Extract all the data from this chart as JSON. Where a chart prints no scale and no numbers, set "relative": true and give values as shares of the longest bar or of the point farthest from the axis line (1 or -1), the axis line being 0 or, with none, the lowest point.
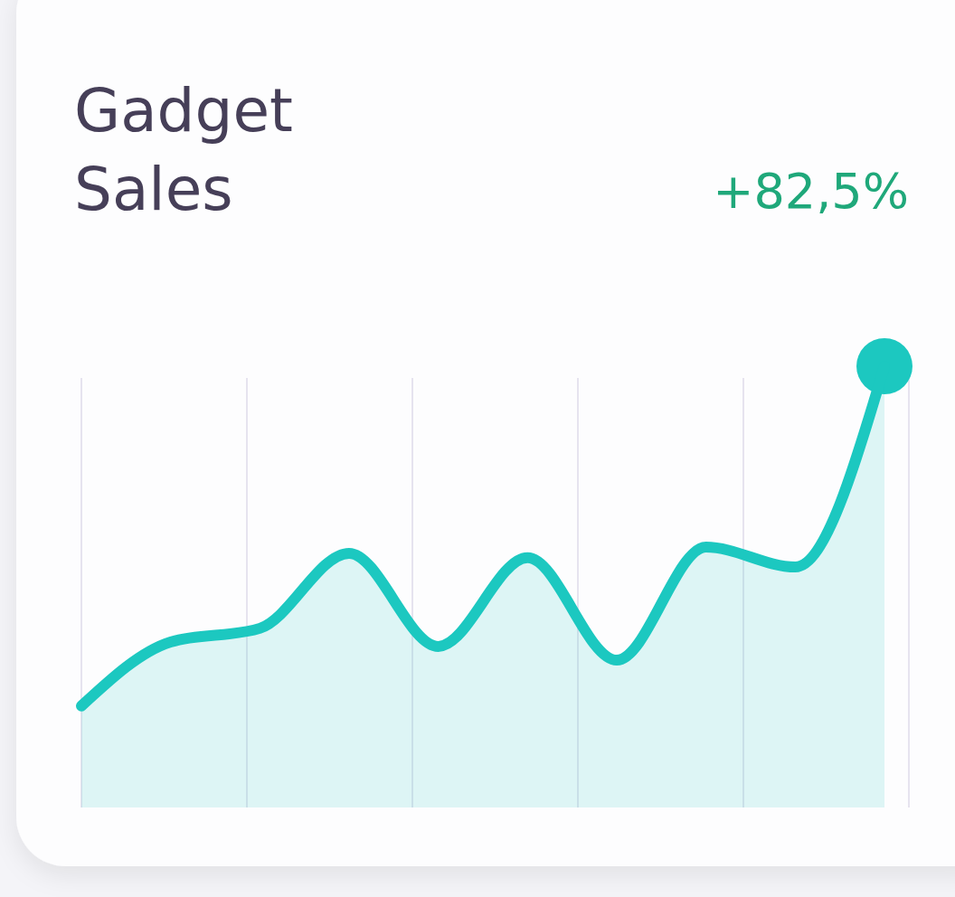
{
  "chart_data": {
    "type": "area",
    "title": "Gadget Sales",
    "relative": true,
    "annotations": [
      "+82,5%"
    ],
    "categories": [
      null,
      null,
      null,
      null,
      null,
      null,
      null,
      null,
      null,
      null
    ],
    "series": [
      {
        "type": "area",
        "color": "#1cc8c0",
        "values": [
          0.23,
          0.375,
          0.406,
          0.576,
          0.365,
          0.566,
          0.334,
          0.59,
          0.545,
          1.0
        ]
      }
    ]
  }
}
